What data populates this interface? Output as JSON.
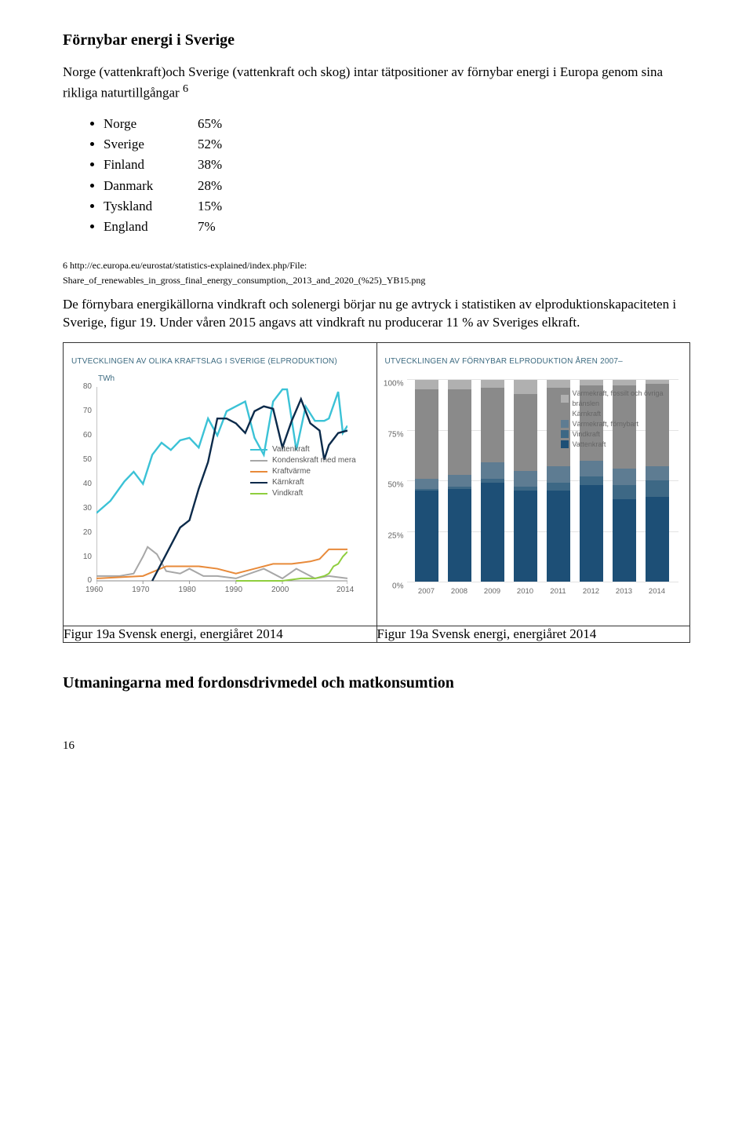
{
  "heading1": "Förnybar energi i Sverige",
  "para1a": "Norge (vattenkraft)och Sverige (vattenkraft och skog) intar tätpositioner av förnybar energi i Europa genom sina rikliga naturtillgångar ",
  "para1_sup": "6",
  "bullets": [
    {
      "country": "Norge",
      "value": "65%"
    },
    {
      "country": "Sverige",
      "value": "52%"
    },
    {
      "country": "Finland",
      "value": "38%"
    },
    {
      "country": "Danmark",
      "value": "28%"
    },
    {
      "country": "Tyskland",
      "value": "15%"
    },
    {
      "country": "England",
      "value": "7%"
    }
  ],
  "footnote_a": "6 http://ec.europa.eu/eurostat/statistics-explained/index.php/File:",
  "footnote_b": "Share_of_renewables_in_gross_final_energy_consumption,_2013_and_2020_(%25)_YB15.png",
  "para2": "De förnybara energikällorna vindkraft och solenergi börjar nu ge avtryck i statistiken av elproduktionskapaciteten i Sverige, figur 19. Under våren 2015 angavs att vindkraft nu producerar 11 % av Sveriges elkraft.",
  "chart1": {
    "title": "UTVECKLINGEN AV OLIKA KRAFTSLAG I SVERIGE (ELPRODUKTION)",
    "y_unit": "TWh",
    "y_ticks": [
      0,
      10,
      20,
      30,
      40,
      50,
      60,
      70,
      80
    ],
    "x_ticks": [
      1960,
      1970,
      1980,
      1990,
      2000,
      2014
    ],
    "x_min": 1960,
    "x_max": 2014,
    "y_min": 0,
    "y_max": 80,
    "colors": {
      "vattenkraft": "#3bc2d6",
      "kondenskraft": "#a7a7a7",
      "kraftvarme": "#e88a3a",
      "karnkraft": "#0b2a4a",
      "vindkraft": "#8fce3e",
      "axis": "#9a9a9a",
      "text": "#3d6b81"
    },
    "legend": [
      {
        "label": "Vattenkraft",
        "color": "#3bc2d6"
      },
      {
        "label": "Kondenskraft med mera",
        "color": "#a7a7a7"
      },
      {
        "label": "Kraftvärme",
        "color": "#e88a3a"
      },
      {
        "label": "Kärnkraft",
        "color": "#0b2a4a"
      },
      {
        "label": "Vindkraft",
        "color": "#8fce3e"
      }
    ],
    "series": {
      "vattenkraft": [
        [
          1960,
          28
        ],
        [
          1963,
          33
        ],
        [
          1966,
          41
        ],
        [
          1968,
          45
        ],
        [
          1970,
          40
        ],
        [
          1972,
          52
        ],
        [
          1974,
          57
        ],
        [
          1976,
          54
        ],
        [
          1978,
          58
        ],
        [
          1980,
          59
        ],
        [
          1982,
          55
        ],
        [
          1984,
          67
        ],
        [
          1986,
          60
        ],
        [
          1988,
          70
        ],
        [
          1990,
          72
        ],
        [
          1992,
          74
        ],
        [
          1994,
          59
        ],
        [
          1996,
          52
        ],
        [
          1998,
          74
        ],
        [
          2000,
          79
        ],
        [
          2001,
          79
        ],
        [
          2003,
          54
        ],
        [
          2005,
          72
        ],
        [
          2007,
          66
        ],
        [
          2009,
          66
        ],
        [
          2010,
          67
        ],
        [
          2012,
          78
        ],
        [
          2013,
          61
        ],
        [
          2014,
          64
        ]
      ],
      "kondenskraft": [
        [
          1960,
          2
        ],
        [
          1965,
          2
        ],
        [
          1968,
          3
        ],
        [
          1970,
          10
        ],
        [
          1971,
          14
        ],
        [
          1973,
          11
        ],
        [
          1975,
          4
        ],
        [
          1978,
          3
        ],
        [
          1980,
          5
        ],
        [
          1983,
          2
        ],
        [
          1986,
          2
        ],
        [
          1990,
          1
        ],
        [
          1996,
          5
        ],
        [
          2000,
          1
        ],
        [
          2003,
          5
        ],
        [
          2007,
          1
        ],
        [
          2010,
          2
        ],
        [
          2014,
          1
        ]
      ],
      "kraftvarme": [
        [
          1960,
          1
        ],
        [
          1970,
          2
        ],
        [
          1975,
          6
        ],
        [
          1978,
          6
        ],
        [
          1982,
          6
        ],
        [
          1986,
          5
        ],
        [
          1990,
          3
        ],
        [
          1994,
          5
        ],
        [
          1998,
          7
        ],
        [
          2002,
          7
        ],
        [
          2006,
          8
        ],
        [
          2008,
          9
        ],
        [
          2010,
          13
        ],
        [
          2012,
          13
        ],
        [
          2014,
          13
        ]
      ],
      "karnkraft": [
        [
          1972,
          0
        ],
        [
          1975,
          11
        ],
        [
          1978,
          22
        ],
        [
          1980,
          25
        ],
        [
          1982,
          38
        ],
        [
          1984,
          49
        ],
        [
          1986,
          67
        ],
        [
          1988,
          67
        ],
        [
          1990,
          65
        ],
        [
          1992,
          61
        ],
        [
          1994,
          70
        ],
        [
          1996,
          72
        ],
        [
          1998,
          71
        ],
        [
          2000,
          55
        ],
        [
          2002,
          66
        ],
        [
          2004,
          75
        ],
        [
          2006,
          65
        ],
        [
          2008,
          62
        ],
        [
          2009,
          50
        ],
        [
          2010,
          56
        ],
        [
          2012,
          61
        ],
        [
          2014,
          62
        ]
      ],
      "vindkraft": [
        [
          1990,
          0
        ],
        [
          1996,
          0
        ],
        [
          2000,
          0
        ],
        [
          2004,
          1
        ],
        [
          2007,
          1
        ],
        [
          2009,
          2
        ],
        [
          2010,
          3
        ],
        [
          2011,
          6
        ],
        [
          2012,
          7
        ],
        [
          2013,
          10
        ],
        [
          2014,
          12
        ]
      ]
    }
  },
  "chart2": {
    "title": "UTVECKLINGEN AV FÖRNYBAR ELPRODUKTION ÅREN 2007–",
    "y_ticks": [
      "0%",
      "25%",
      "50%",
      "75%",
      "100%"
    ],
    "x_labels": [
      "2007",
      "2008",
      "2009",
      "2010",
      "2011",
      "2012",
      "2013",
      "2014"
    ],
    "colors": {
      "varmekraft_fossil": "#b0b0b0",
      "karnkraft": "#8a8a8a",
      "varmekraft_fornybar": "#5e7c92",
      "vindkraft": "#3d6885",
      "vattenkraft": "#1d4f76",
      "grid": "#e3e3e3",
      "text": "#666666"
    },
    "legend": [
      {
        "label": "Värmekraft, fossilt och övriga bränslen",
        "color": "#b0b0b0"
      },
      {
        "label": "Kärnkraft",
        "color": "#8a8a8a"
      },
      {
        "label": "Värmekraft, förnybart",
        "color": "#5e7c92"
      },
      {
        "label": "Vindkraft",
        "color": "#3d6885"
      },
      {
        "label": "Vattenkraft",
        "color": "#1d4f76"
      }
    ],
    "stacks": [
      {
        "vattenkraft": 45,
        "vindkraft": 1,
        "varmekraft_fornybar": 5,
        "karnkraft": 44,
        "varmekraft_fossil": 5
      },
      {
        "vattenkraft": 46,
        "vindkraft": 1,
        "varmekraft_fornybar": 6,
        "karnkraft": 42,
        "varmekraft_fossil": 5
      },
      {
        "vattenkraft": 49,
        "vindkraft": 2,
        "varmekraft_fornybar": 8,
        "karnkraft": 37,
        "varmekraft_fossil": 4
      },
      {
        "vattenkraft": 45,
        "vindkraft": 2,
        "varmekraft_fornybar": 8,
        "karnkraft": 38,
        "varmekraft_fossil": 7
      },
      {
        "vattenkraft": 45,
        "vindkraft": 4,
        "varmekraft_fornybar": 8,
        "karnkraft": 39,
        "varmekraft_fossil": 4
      },
      {
        "vattenkraft": 48,
        "vindkraft": 4,
        "varmekraft_fornybar": 8,
        "karnkraft": 37,
        "varmekraft_fossil": 3
      },
      {
        "vattenkraft": 41,
        "vindkraft": 7,
        "varmekraft_fornybar": 8,
        "karnkraft": 41,
        "varmekraft_fossil": 3
      },
      {
        "vattenkraft": 42,
        "vindkraft": 8,
        "varmekraft_fornybar": 7,
        "karnkraft": 41,
        "varmekraft_fossil": 2
      }
    ]
  },
  "caption1": "Figur 19a Svensk energi, energiåret 2014",
  "caption2": "Figur 19a Svensk energi, energiåret 2014",
  "heading2": "Utmaningarna med fordonsdrivmedel och matkonsumtion",
  "page_num": "16"
}
